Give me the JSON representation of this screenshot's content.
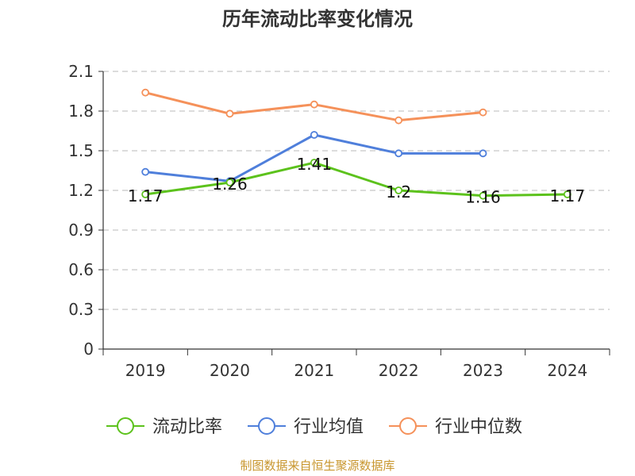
{
  "chart_data": {
    "type": "line",
    "title": "历年流动比率变化情况",
    "categories": [
      "2019",
      "2020",
      "2021",
      "2022",
      "2023",
      "2024"
    ],
    "ylim": [
      0,
      2.1
    ],
    "yticks": [
      "0",
      "0.3",
      "0.6",
      "0.9",
      "1.2",
      "1.5",
      "1.8",
      "2.1"
    ],
    "ytick_values": [
      0,
      0.3,
      0.6,
      0.9,
      1.2,
      1.5,
      1.8,
      2.1
    ],
    "grid": true,
    "legend_position": "bottom-center",
    "series": [
      {
        "name": "流动比率",
        "color": "#5cc21c",
        "values": [
          1.17,
          1.26,
          1.41,
          1.2,
          1.16,
          1.17
        ],
        "data_labels": [
          "1.17",
          "1.26",
          "1.41",
          "1.2",
          "1.16",
          "1.17"
        ]
      },
      {
        "name": "行业均值",
        "color": "#4f7fdb",
        "values": [
          1.34,
          1.27,
          1.62,
          1.48,
          1.48,
          null
        ]
      },
      {
        "name": "行业中位数",
        "color": "#f5915a",
        "values": [
          1.94,
          1.78,
          1.85,
          1.73,
          1.79,
          null
        ]
      }
    ]
  },
  "source": "制图数据来自恒生聚源数据库"
}
